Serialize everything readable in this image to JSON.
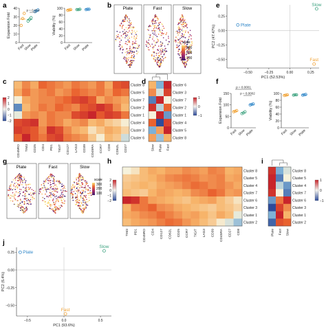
{
  "panel_letters": {
    "a": "a",
    "b": "b",
    "c": "c",
    "d": "d",
    "e": "e",
    "f": "f",
    "g": "g",
    "h": "h",
    "i": "i",
    "j": "j"
  },
  "colors": {
    "fast": "#f0a030",
    "slow": "#3aa17e",
    "plate": "#2f86c8",
    "neg": "#2d4b9a",
    "pos": "#c8252b"
  },
  "chart_data": [
    {
      "id": "a1",
      "type": "scatter",
      "ylabel": "Expansion Fold",
      "categories": [
        "Fast",
        "Slow",
        "Plate"
      ],
      "points": [
        {
          "cat": "Fast",
          "values": [
            20,
            28,
            34
          ]
        },
        {
          "cat": "Slow",
          "values": [
            25,
            27,
            29
          ]
        },
        {
          "cat": "Plate",
          "values": [
            36,
            37,
            38
          ]
        }
      ],
      "ylim": [
        0,
        40
      ],
      "yticks": [
        "0",
        "10",
        "20",
        "30",
        "40"
      ],
      "annotation": "p = 0.014"
    },
    {
      "id": "a2",
      "type": "scatter",
      "ylabel": "Viability (%)",
      "categories": [
        "Fast",
        "Slow",
        "Plate"
      ],
      "points": [
        {
          "cat": "Fast",
          "values": [
            94,
            95,
            96
          ]
        },
        {
          "cat": "Slow",
          "values": [
            96,
            96,
            97
          ]
        },
        {
          "cat": "Plate",
          "values": [
            96,
            97,
            97
          ]
        }
      ],
      "ylim": [
        0,
        100
      ],
      "yticks": [
        "0",
        "20",
        "40",
        "60",
        "80",
        "100"
      ]
    },
    {
      "id": "e",
      "type": "scatter",
      "xlabel": "PC1 (52.53%)",
      "ylabel": "PC2 (47.47%)",
      "xlim": [
        -0.75,
        0.35
      ],
      "ylim": [
        -0.65,
        0.45
      ],
      "xticks": [
        "−0.50",
        "−0.25",
        "0.00",
        "0.25"
      ],
      "yticks": [
        "−0.50",
        "−0.25",
        "0.00",
        "0.25"
      ],
      "points": [
        {
          "label": "Plate",
          "x": -0.62,
          "y": 0.1
        },
        {
          "label": "Slow",
          "x": 0.32,
          "y": 0.38
        },
        {
          "label": "Fast",
          "x": 0.29,
          "y": -0.58
        }
      ]
    },
    {
      "id": "f1",
      "type": "scatter",
      "ylabel": "Expansion Fold",
      "categories": [
        "Fast",
        "Slow",
        "Plate"
      ],
      "points": [
        {
          "cat": "Fast",
          "values": [
            70,
            72,
            75
          ]
        },
        {
          "cat": "Slow",
          "values": [
            62,
            65,
            70
          ]
        },
        {
          "cat": "Plate",
          "values": [
            100,
            102,
            104
          ]
        }
      ],
      "ylim": [
        0,
        150
      ],
      "yticks": [
        "0",
        "50",
        "100",
        "150"
      ],
      "annotations": [
        "p = 0.0002",
        "p = 0.0001"
      ]
    },
    {
      "id": "f2",
      "type": "scatter",
      "ylabel": "Viability (%)",
      "categories": [
        "Fast",
        "Slow",
        "Plate"
      ],
      "points": [
        {
          "cat": "Fast",
          "values": [
            94,
            95,
            96
          ]
        },
        {
          "cat": "Slow",
          "values": [
            95,
            96,
            96
          ]
        },
        {
          "cat": "Plate",
          "values": [
            95,
            96,
            97
          ]
        }
      ],
      "ylim": [
        0,
        100
      ],
      "yticks": [
        "0",
        "20",
        "40",
        "60",
        "80",
        "100"
      ]
    },
    {
      "id": "j",
      "type": "scatter",
      "xlabel": "PC1 (93.6%)",
      "ylabel": "PC2 (6.4%)",
      "xlim": [
        -0.65,
        0.65
      ],
      "ylim": [
        -0.65,
        0.32
      ],
      "xticks": [
        "−0.5",
        "0.0",
        "0.5"
      ],
      "yticks": [
        "−0.50",
        "−0.25",
        "0.00",
        "0.25"
      ],
      "points": [
        {
          "label": "Plate",
          "x": -0.6,
          "y": 0.25
        },
        {
          "label": "Slow",
          "x": 0.55,
          "y": 0.27
        },
        {
          "label": "Fast",
          "x": 0.02,
          "y": -0.62
        }
      ]
    },
    {
      "id": "c",
      "type": "heatmap",
      "rows": [
        "Cluster 8",
        "Cluster 5",
        "Cluster 7",
        "Cluster 2",
        "Cluster 1",
        "Cluster 4",
        "Cluster 3",
        "Cluster 6"
      ],
      "cols": [
        "CD45RO",
        "TIM3",
        "CD25",
        "CD4",
        "PD1",
        "TIGIT",
        "CD127",
        "LAG3",
        "CD39",
        "CD45RA",
        "CCR7",
        "CD8",
        "CD62L",
        "CD27"
      ],
      "values": [
        [
          0.2,
          0.5,
          0.3,
          0.7,
          0.6,
          0.5,
          0.4,
          0.6,
          0.5,
          0.4,
          0.6,
          0.3,
          0.8,
          0.9
        ],
        [
          0.3,
          0.6,
          0.4,
          0.5,
          0.6,
          0.4,
          0.5,
          0.7,
          0.6,
          0.5,
          0.6,
          0.4,
          0.7,
          0.6
        ],
        [
          -0.2,
          0.3,
          0.4,
          0.5,
          0.5,
          0.6,
          0.7,
          0.9,
          1.0,
          0.8,
          0.3,
          0.5,
          0.4,
          0.3
        ],
        [
          -0.9,
          0.2,
          0.4,
          0.6,
          0.5,
          0.7,
          0.6,
          0.5,
          0.8,
          0.9,
          1.1,
          0.9,
          0.5,
          0.2
        ],
        [
          -0.3,
          0.4,
          0.5,
          0.4,
          0.6,
          0.5,
          0.5,
          0.9,
          1.0,
          1.2,
          0.8,
          1.0,
          0.9,
          0.6
        ],
        [
          0.9,
          1.0,
          1.1,
          0.4,
          0.6,
          0.5,
          0.3,
          0.4,
          0.5,
          0.2,
          0.3,
          0.1,
          0.0,
          -0.2
        ],
        [
          1.0,
          0.9,
          0.8,
          0.5,
          1.1,
          0.9,
          0.5,
          0.3,
          0.2,
          -0.1,
          0.1,
          0.3,
          0.2,
          0.0
        ],
        [
          0.7,
          1.2,
          0.8,
          0.6,
          0.9,
          1.0,
          0.6,
          0.5,
          0.4,
          0.1,
          -0.2,
          0.2,
          0.1,
          -0.4
        ]
      ],
      "scale_ticks": [
        "2",
        "1",
        "0",
        "−1",
        "−2"
      ]
    },
    {
      "id": "d",
      "type": "heatmap",
      "rows": [
        "Cluster 6",
        "Cluster 3",
        "Cluster 7",
        "Cluster 2",
        "Cluster 1",
        "Cluster 4",
        "Cluster 5",
        "Cluster 8"
      ],
      "cols": [
        "Slow",
        "Plate",
        "Fast"
      ],
      "values": [
        [
          0.2,
          -0.6,
          1.0
        ],
        [
          0.4,
          -0.3,
          0.8
        ],
        [
          -0.8,
          1.0,
          -0.2
        ],
        [
          0.9,
          -0.4,
          0.6
        ],
        [
          -0.2,
          1.0,
          -0.7
        ],
        [
          0.6,
          -1.0,
          0.8
        ],
        [
          -0.6,
          0.3,
          1.0
        ],
        [
          0.3,
          -0.5,
          0.2
        ]
      ],
      "scale_ticks": [
        "1",
        "0",
        "−1"
      ]
    },
    {
      "id": "h",
      "type": "heatmap",
      "rows": [
        "Cluster 8",
        "Cluster 5",
        "Cluster 4",
        "Cluster 7",
        "Cluster 6",
        "Cluster 3",
        "Cluster 1",
        "Cluster 2"
      ],
      "cols": [
        "TIM3",
        "PD1",
        "CD45RO",
        "CD4",
        "CD127",
        "CD62L",
        "CD25",
        "CCR7",
        "TIGIT",
        "LAG3",
        "CD39",
        "CD45RA",
        "CD27",
        "CD8"
      ],
      "values": [
        [
          -0.4,
          -0.2,
          0.3,
          0.5,
          0.4,
          0.6,
          0.6,
          0.8,
          0.7,
          0.6,
          0.9,
          0.8,
          0.4,
          0.5
        ],
        [
          0.1,
          0.2,
          0.3,
          0.4,
          0.6,
          0.8,
          0.9,
          1.0,
          0.9,
          0.7,
          0.8,
          0.9,
          0.5,
          0.6
        ],
        [
          0.2,
          0.3,
          0.4,
          0.3,
          0.5,
          0.6,
          0.7,
          0.9,
          1.1,
          1.0,
          0.8,
          0.9,
          0.7,
          0.5
        ],
        [
          0.3,
          0.2,
          0.1,
          0.4,
          0.6,
          0.5,
          0.4,
          0.5,
          0.8,
          0.9,
          1.2,
          1.0,
          0.6,
          0.7
        ],
        [
          2.0,
          1.8,
          1.0,
          0.6,
          0.5,
          0.4,
          0.3,
          0.2,
          0.4,
          0.5,
          0.6,
          0.3,
          0.1,
          -0.2
        ],
        [
          0.4,
          0.9,
          1.0,
          1.2,
          0.8,
          0.7,
          0.5,
          0.4,
          0.3,
          0.2,
          0.1,
          0.3,
          0.2,
          0.0
        ],
        [
          0.5,
          0.6,
          0.8,
          0.9,
          1.1,
          0.9,
          0.7,
          0.5,
          0.6,
          0.4,
          0.2,
          0.5,
          0.3,
          -0.5
        ],
        [
          0.3,
          0.5,
          0.6,
          0.7,
          0.9,
          1.1,
          1.0,
          0.7,
          0.5,
          0.3,
          0.1,
          -0.3,
          -0.6,
          -1.0
        ]
      ],
      "scale_ticks": [
        "2",
        "1",
        "0",
        "−1",
        "−2"
      ]
    },
    {
      "id": "i",
      "type": "heatmap",
      "rows": [
        "Cluster 8",
        "Cluster 5",
        "Cluster 4",
        "Cluster 7",
        "Cluster 6",
        "Cluster 3",
        "Cluster 1",
        "Cluster 2"
      ],
      "cols": [
        "Plate",
        "Fast",
        "Slow"
      ],
      "values": [
        [
          0.9,
          -0.6,
          -0.3
        ],
        [
          1.0,
          -0.8,
          -0.2
        ],
        [
          1.0,
          -0.4,
          -0.7
        ],
        [
          0.9,
          -0.2,
          -0.8
        ],
        [
          -0.7,
          0.5,
          1.0
        ],
        [
          -1.0,
          0.8,
          0.4
        ],
        [
          -0.6,
          1.0,
          0.2
        ],
        [
          -0.9,
          0.7,
          0.6
        ]
      ],
      "scale_ticks": [
        "1",
        "0",
        "−1"
      ]
    }
  ],
  "umap_b": {
    "panels": [
      "Plate",
      "Fast",
      "Slow"
    ],
    "scale_title": "scale",
    "scale_ticks": [
      "300",
      "200",
      "100"
    ]
  },
  "umap_g": {
    "panels": [
      "Plate",
      "Fast",
      "Slow"
    ],
    "scale_title": "scale",
    "scale_ticks": [
      "300",
      "200",
      "100"
    ]
  }
}
